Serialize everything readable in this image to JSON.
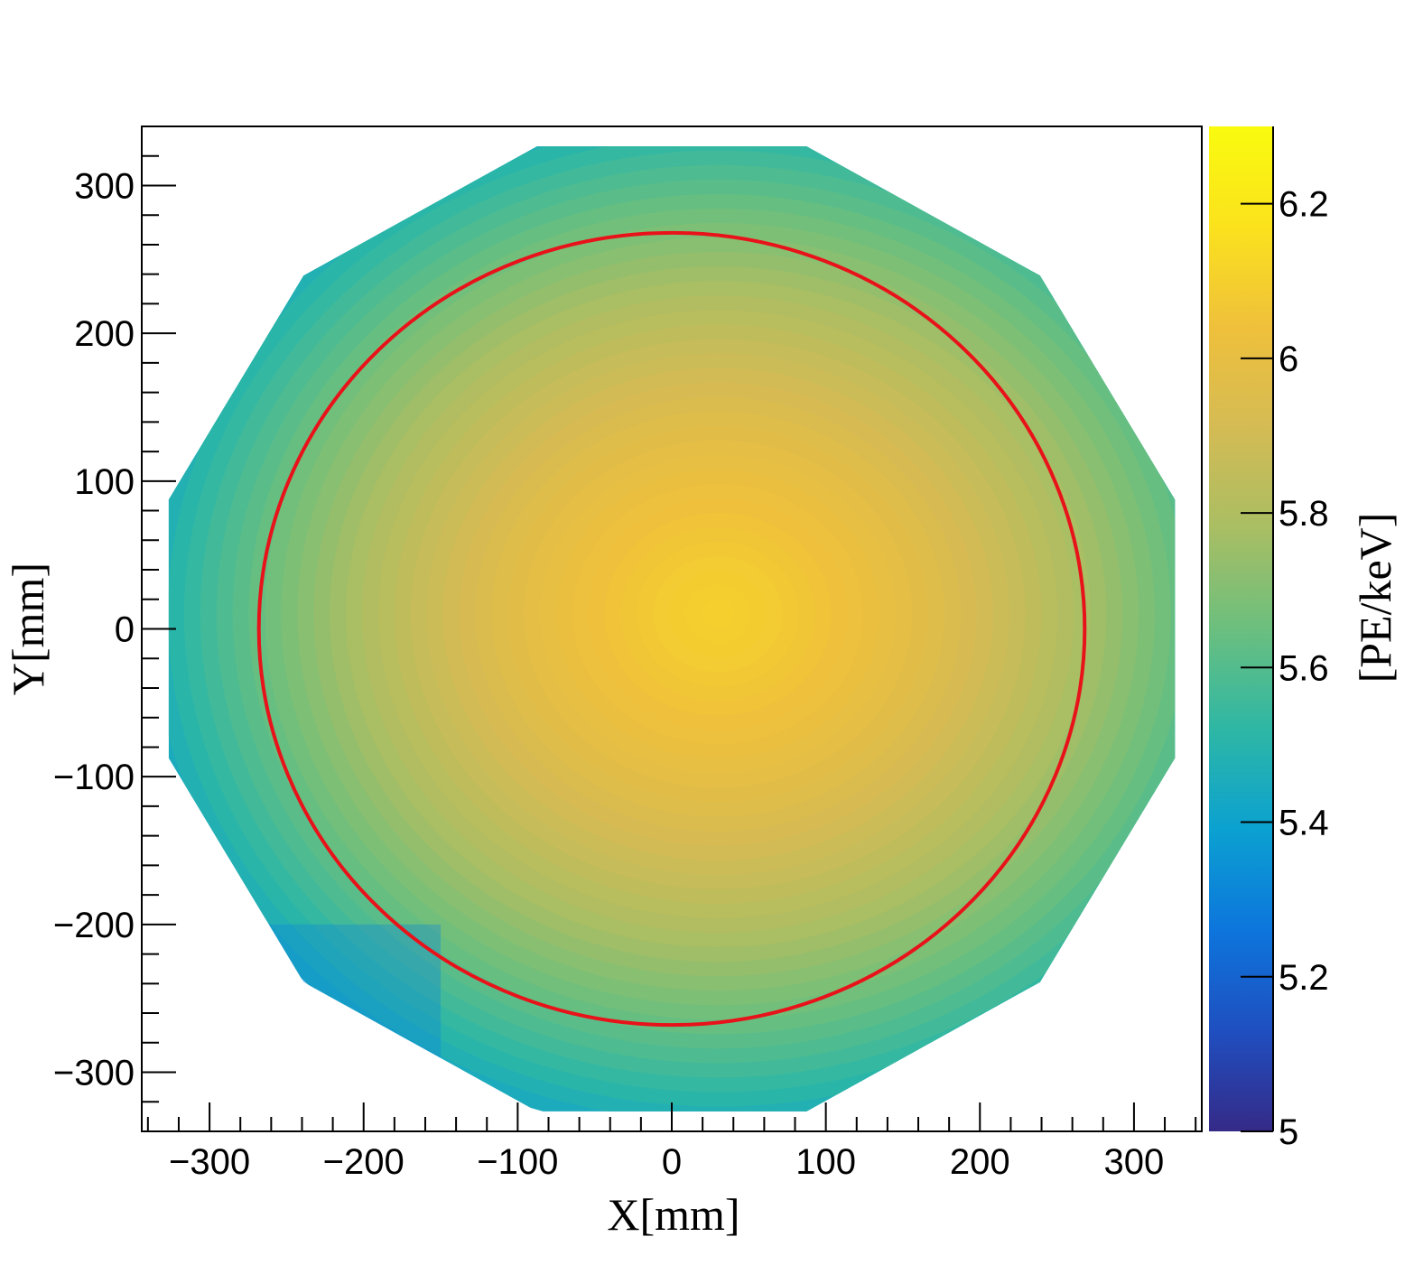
{
  "chart_data": {
    "type": "heatmap",
    "title": "",
    "xlabel": "X[mm]",
    "ylabel": "Y[mm]",
    "zlabel": "[PE/keV]",
    "xlim": [
      -344,
      344
    ],
    "ylim": [
      -340,
      340
    ],
    "zlim": [
      5.0,
      6.3
    ],
    "x_ticks": [
      -300,
      -200,
      -100,
      0,
      100,
      200,
      300
    ],
    "y_ticks": [
      -300,
      -200,
      -100,
      0,
      100,
      200,
      300
    ],
    "z_ticks": [
      5,
      5.2,
      5.4,
      5.6,
      5.8,
      6,
      6.2
    ],
    "x_tick_labels": [
      "−300",
      "−200",
      "−100",
      "0",
      "100",
      "200",
      "300"
    ],
    "y_tick_labels": [
      "−300",
      "−200",
      "−100",
      "0",
      "100",
      "200",
      "300"
    ],
    "z_tick_labels": [
      "5",
      "5.2",
      "5.4",
      "5.6",
      "5.8",
      "6",
      "6.2"
    ],
    "colormap": [
      "#352a87",
      "#1f4fc0",
      "#0d75dc",
      "#0ba1d1",
      "#2eb7a5",
      "#6bbf7e",
      "#a9be63",
      "#d4bb54",
      "#efc03b",
      "#fbe21d",
      "#f9fb0e"
    ],
    "field": {
      "shape": "dodecagon",
      "circumradius_mm": 338,
      "center_mm": [
        30,
        10
      ],
      "peak_value": 6.1,
      "edge_value": 5.45,
      "corner_value": 5.3
    },
    "fiducial_circle": {
      "center_mm": [
        0,
        0
      ],
      "radius_mm": 268,
      "color": "#e8131a"
    },
    "grid": false,
    "legend": "none"
  }
}
